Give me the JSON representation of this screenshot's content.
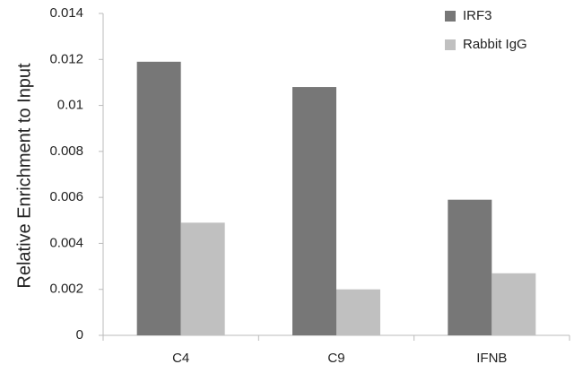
{
  "chart_data": {
    "type": "bar",
    "y_label": "Relative Enrichment to Input",
    "categories": [
      "C4",
      "C9",
      "IFNB"
    ],
    "series": [
      {
        "name": "IRF3",
        "color": "#777777",
        "values": [
          0.0119,
          0.0108,
          0.0059
        ]
      },
      {
        "name": "Rabbit IgG",
        "color": "#c0c0c0",
        "values": [
          0.0049,
          0.002,
          0.0027
        ]
      }
    ],
    "ylim": [
      0,
      0.014
    ],
    "yticks": [
      0,
      0.002,
      0.004,
      0.006,
      0.008,
      0.01,
      0.012,
      0.014
    ],
    "grid": false,
    "legend": "upper right"
  }
}
